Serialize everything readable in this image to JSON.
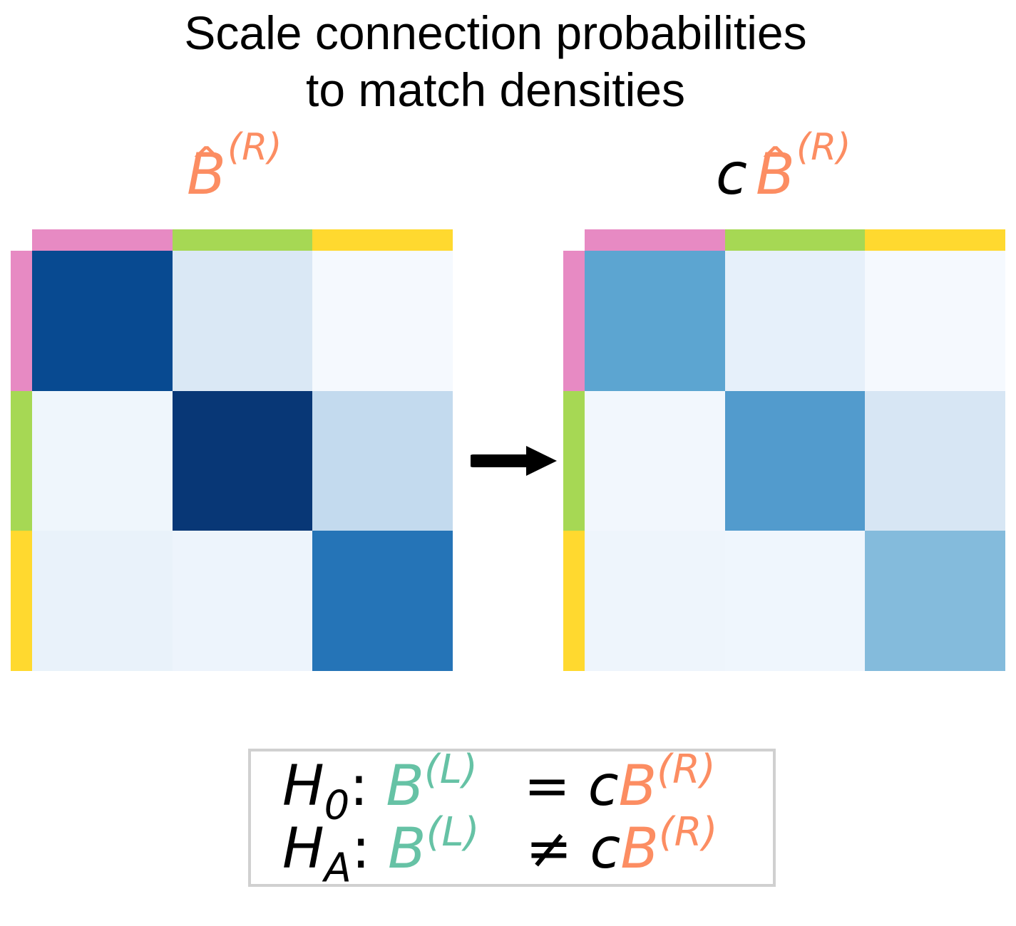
{
  "title_line1": "Scale connection probabilities",
  "title_line2": "to match densities",
  "left_label": {
    "symbol": "B",
    "hat": "^",
    "superscript": "(R)",
    "color": "#fc8d62"
  },
  "right_label": {
    "prefix": "c",
    "symbol": "B",
    "hat": "^",
    "superscript": "(R)",
    "color": "#fc8d62"
  },
  "group_colors": [
    "#e78ac3",
    "#a6d854",
    "#ffd92f"
  ],
  "left_matrix": {
    "cell_colors": [
      [
        "#084a91",
        "#dae8f5",
        "#f5f9fe"
      ],
      [
        "#eff6fc",
        "#083776",
        "#c3daee"
      ],
      [
        "#e9f2fa",
        "#edf4fc",
        "#2574b7"
      ]
    ]
  },
  "right_matrix": {
    "cell_colors": [
      [
        "#5ca5d1",
        "#e6f0fa",
        "#f5f9fe"
      ],
      [
        "#f2f7fd",
        "#529bcd",
        "#d7e6f4"
      ],
      [
        "#eef5fc",
        "#eff6fd",
        "#84bbdc"
      ]
    ]
  },
  "arrow": {
    "color": "#000000",
    "icon": "right-arrow-icon"
  },
  "hypotheses": {
    "h0": {
      "H": "H",
      "sub": "0",
      "colon": ":",
      "B_left": "B",
      "sup_left": "(L)",
      "relation": "=",
      "c": "c",
      "B_right": "B",
      "sup_right": "(R)"
    },
    "ha": {
      "H": "H",
      "sub": "A",
      "colon": ":",
      "B_left": "B",
      "sup_left": "(L)",
      "relation": "≠",
      "c": "c",
      "B_right": "B",
      "sup_right": "(R)"
    },
    "left_color": "#66c2a5",
    "right_color": "#fc8d62",
    "border_color": "#d0d0d0"
  }
}
